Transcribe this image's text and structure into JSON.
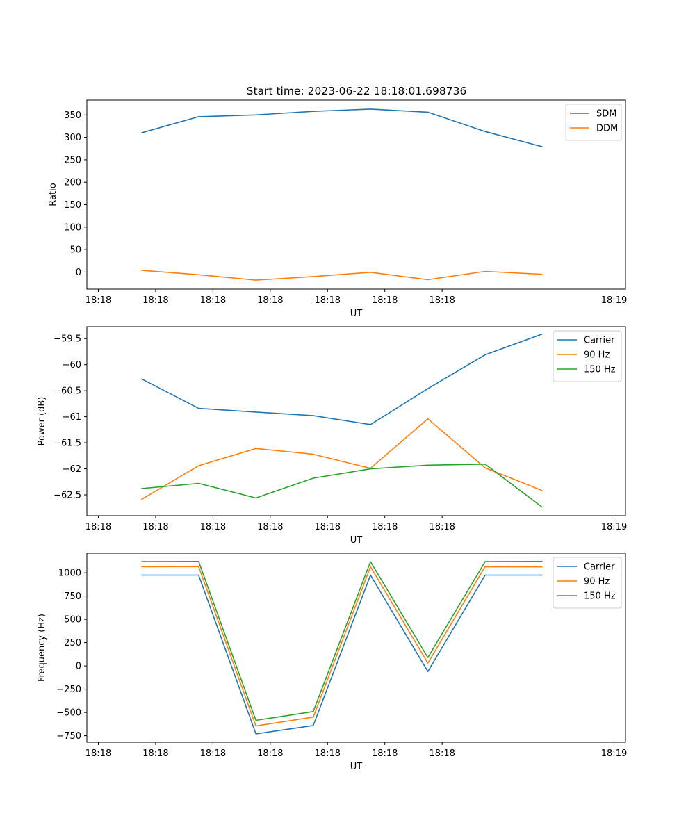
{
  "figure": {
    "title": "Start time: 2023-06-22 18:18:01.698736"
  },
  "chart_data": [
    {
      "type": "line",
      "title": "Start time: 2023-06-22 18:18:01.698736",
      "xlabel": "UT",
      "ylabel": "Ratio",
      "x_tick_labels": [
        "18:18",
        "18:18",
        "18:18",
        "18:18",
        "18:18",
        "18:18",
        "18:18"
      ],
      "x_last_tick_label": "18:19",
      "xlim": [
        -0.2,
        9.2
      ],
      "x": [
        0.75,
        1.75,
        2.75,
        3.75,
        4.75,
        5.75,
        6.75,
        7.75
      ],
      "ylim": [
        -38,
        383
      ],
      "y_ticks": [
        0,
        50,
        100,
        150,
        200,
        250,
        300,
        350
      ],
      "legend_location": "upper right",
      "series": [
        {
          "name": "SDM",
          "color": "#1f77b4",
          "values": [
            310,
            346,
            350,
            358,
            363,
            356,
            313,
            279
          ]
        },
        {
          "name": "DDM",
          "color": "#ff7f0e",
          "values": [
            4,
            -6,
            -18,
            -10,
            -0.5,
            -17,
            1.5,
            -5
          ]
        }
      ]
    },
    {
      "type": "line",
      "xlabel": "UT",
      "ylabel": "Power (dB)",
      "x_tick_labels": [
        "18:18",
        "18:18",
        "18:18",
        "18:18",
        "18:18",
        "18:18",
        "18:18"
      ],
      "x_last_tick_label": "18:19",
      "xlim": [
        -0.2,
        9.2
      ],
      "x": [
        0.75,
        1.75,
        2.75,
        3.75,
        4.75,
        5.75,
        6.75,
        7.75
      ],
      "ylim": [
        -62.9,
        -59.27
      ],
      "y_ticks": [
        -62.5,
        -62.0,
        -61.5,
        -61.0,
        -60.5,
        -60.0,
        -59.5
      ],
      "legend_location": "upper right",
      "series": [
        {
          "name": "Carrier",
          "color": "#1f77b4",
          "values": [
            -60.27,
            -60.84,
            -60.91,
            -60.98,
            -61.15,
            -60.46,
            -59.81,
            -59.41
          ]
        },
        {
          "name": "90 Hz",
          "color": "#ff7f0e",
          "values": [
            -62.59,
            -61.94,
            -61.61,
            -61.72,
            -61.99,
            -61.04,
            -61.98,
            -62.42
          ]
        },
        {
          "name": "150 Hz",
          "color": "#2ca02c",
          "values": [
            -62.38,
            -62.28,
            -62.56,
            -62.18,
            -62.0,
            -61.93,
            -61.91,
            -62.74
          ]
        }
      ]
    },
    {
      "type": "line",
      "xlabel": "UT",
      "ylabel": "Frequency (Hz)",
      "x_tick_labels": [
        "18:18",
        "18:18",
        "18:18",
        "18:18",
        "18:18",
        "18:18",
        "18:18"
      ],
      "x_last_tick_label": "18:19",
      "xlim": [
        -0.2,
        9.2
      ],
      "x": [
        0.75,
        1.75,
        2.75,
        3.75,
        4.75,
        5.75,
        6.75,
        7.75
      ],
      "ylim": [
        -820,
        1210
      ],
      "y_ticks": [
        -750,
        -500,
        -250,
        0,
        250,
        500,
        750,
        1000
      ],
      "legend_location": "upper right",
      "series": [
        {
          "name": "Carrier",
          "color": "#1f77b4",
          "values": [
            975,
            975,
            -730,
            -640,
            975,
            -60,
            975,
            975
          ]
        },
        {
          "name": "90 Hz",
          "color": "#ff7f0e",
          "values": [
            1065,
            1067,
            -645,
            -550,
            1065,
            30,
            1065,
            1063
          ]
        },
        {
          "name": "150 Hz",
          "color": "#2ca02c",
          "values": [
            1120,
            1122,
            -585,
            -490,
            1120,
            90,
            1120,
            1123
          ]
        }
      ]
    }
  ]
}
